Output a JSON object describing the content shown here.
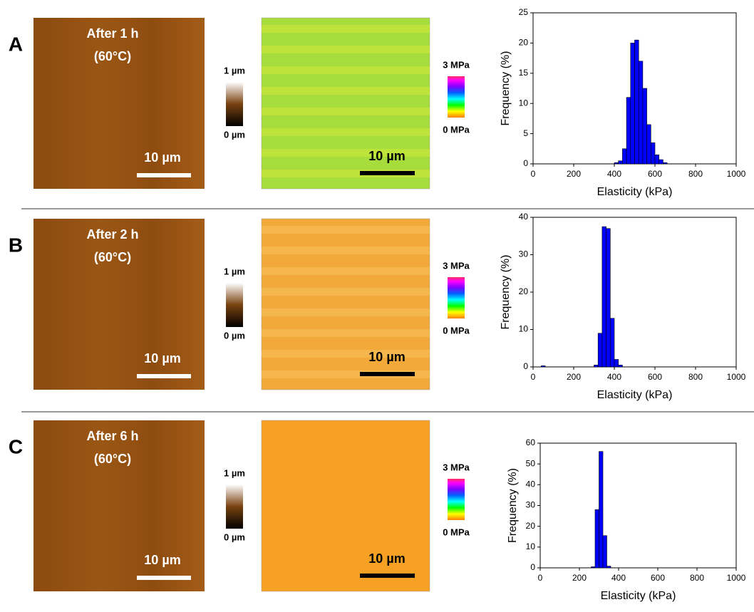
{
  "panels": [
    {
      "label": "A",
      "condition": "After 1 h",
      "temperature": "(60°C)",
      "height_scale_bar": "10 µm",
      "height_max": "1 µm",
      "height_min": "0 µm",
      "modulus_scale_bar": "10 µm",
      "modulus_max": "3 MPa",
      "modulus_min": "0 MPa"
    },
    {
      "label": "B",
      "condition": "After 2 h",
      "temperature": "(60°C)",
      "height_scale_bar": "10 µm",
      "height_max": "1 µm",
      "height_min": "0 µm",
      "modulus_scale_bar": "10 µm",
      "modulus_max": "3 MPa",
      "modulus_min": "0 MPa"
    },
    {
      "label": "C",
      "condition": "After 6 h",
      "temperature": "(60°C)",
      "height_scale_bar": "10 µm",
      "height_max": "1 µm",
      "height_min": "0 µm",
      "modulus_scale_bar": "10 µm",
      "modulus_max": "3 MPa",
      "modulus_min": "0 MPa"
    }
  ],
  "chart_data": [
    {
      "type": "histogram",
      "x_label": "Elasticity (kPa)",
      "y_label": "Frequency (%)",
      "color": "#0000ff",
      "bins": [
        400,
        420,
        440,
        460,
        480,
        500,
        520,
        540,
        560,
        580,
        600,
        620,
        640,
        660
      ],
      "counts": [
        0.2,
        0.5,
        2.5,
        11,
        20,
        20.5,
        17,
        12.5,
        6.5,
        3.5,
        1.5,
        0.7,
        0.2
      ],
      "xlim": [
        0,
        1000
      ],
      "xticks": [
        0,
        200,
        400,
        600,
        800,
        1000
      ],
      "ylim": [
        0,
        25
      ],
      "yticks": [
        0,
        5,
        10,
        15,
        20,
        25
      ]
    },
    {
      "type": "histogram",
      "x_label": "Elasticity (kPa)",
      "y_label": "Frequency (%)",
      "color": "#0000ff",
      "bins": [
        40,
        60,
        80,
        100,
        120,
        140,
        160,
        180,
        200,
        220,
        240,
        260,
        280,
        300,
        320,
        340,
        360,
        380,
        400,
        420,
        440
      ],
      "counts": [
        0.3,
        0,
        0,
        0,
        0,
        0,
        0,
        0,
        0,
        0,
        0,
        0,
        0,
        0.5,
        9,
        37.5,
        37,
        13,
        2,
        0.5
      ],
      "xlim": [
        0,
        1000
      ],
      "xticks": [
        0,
        200,
        400,
        600,
        800,
        1000
      ],
      "ylim": [
        0,
        40
      ],
      "yticks": [
        0,
        10,
        20,
        30,
        40
      ]
    },
    {
      "type": "histogram",
      "x_label": "Elasticity (kPa)",
      "y_label": "Frequency (%)",
      "color": "#0000ff",
      "bins": [
        260,
        280,
        300,
        320,
        340,
        360
      ],
      "counts": [
        0.5,
        28,
        56,
        15.5,
        0.8
      ],
      "xlim": [
        0,
        1000
      ],
      "xticks": [
        0,
        200,
        400,
        600,
        800,
        1000
      ],
      "ylim": [
        0,
        60
      ],
      "yticks": [
        0,
        10,
        20,
        30,
        40,
        50,
        60
      ]
    }
  ]
}
